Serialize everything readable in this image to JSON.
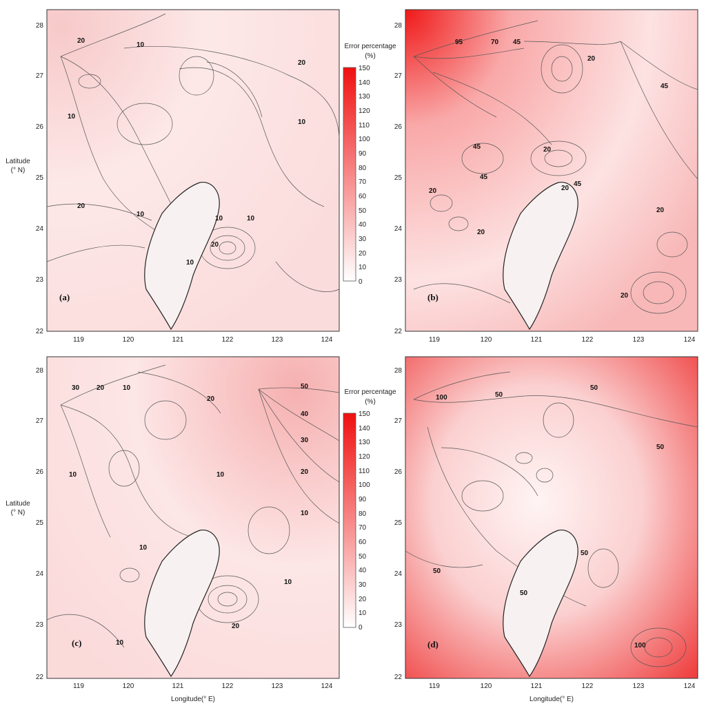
{
  "lat_ticks": [
    "28",
    "27",
    "26",
    "25",
    "24",
    "23",
    "22"
  ],
  "lon_ticks": [
    "119",
    "120",
    "121",
    "122",
    "123",
    "124"
  ],
  "ylabel_line1": "Latitude",
  "ylabel_line2": "(° N)",
  "xlabel": "Longitude(° E)",
  "colorbar": {
    "title_line1": "Error percentage",
    "title_line2": "(%)",
    "labels": [
      "150",
      "140",
      "130",
      "120",
      "110",
      "100",
      "90",
      "80",
      "70",
      "60",
      "50",
      "40",
      "30",
      "20",
      "10",
      "0"
    ],
    "color_min": "#ffffff",
    "color_max": "#f01010"
  },
  "panels": [
    {
      "id": "a",
      "label": "(a)",
      "contour_labels": [
        "20",
        "10",
        "20",
        "10",
        "10",
        "20",
        "10",
        "10",
        "10",
        "20",
        "10"
      ]
    },
    {
      "id": "b",
      "label": "(b)",
      "contour_labels": [
        "95",
        "70",
        "45",
        "20",
        "45",
        "45",
        "20",
        "45",
        "20",
        "20",
        "45",
        "20",
        "20",
        "20"
      ]
    },
    {
      "id": "c",
      "label": "(c)",
      "contour_labels": [
        "30",
        "20",
        "10",
        "20",
        "50",
        "40",
        "30",
        "20",
        "10",
        "10",
        "10",
        "10",
        "10",
        "20",
        "10"
      ]
    },
    {
      "id": "d",
      "label": "(d)",
      "contour_labels": [
        "100",
        "50",
        "50",
        "50",
        "50",
        "50",
        "50",
        "100"
      ]
    }
  ]
}
